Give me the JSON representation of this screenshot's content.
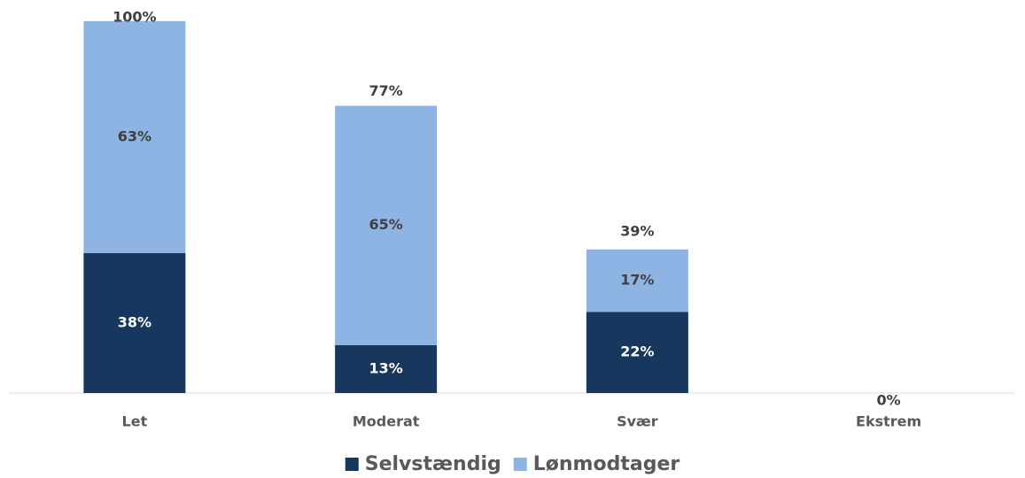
{
  "chart_data": {
    "type": "stacked_bar",
    "categories": [
      "Let",
      "Moderat",
      "Svær",
      "Ekstrem"
    ],
    "series": [
      {
        "name": "Selvstændig",
        "color": "#17375e",
        "values": [
          38,
          13,
          22,
          null
        ],
        "value_labels": [
          "38%",
          "13%",
          "22%",
          null
        ]
      },
      {
        "name": "Lønmodtager",
        "color": "#8eb4e3",
        "values": [
          63,
          65,
          17,
          null
        ],
        "value_labels": [
          "63%",
          "65%",
          "17%",
          null
        ]
      }
    ],
    "totals": [
      100,
      77,
      39,
      0
    ],
    "total_labels": [
      "100%",
      "77%",
      "39%",
      "0%"
    ]
  }
}
